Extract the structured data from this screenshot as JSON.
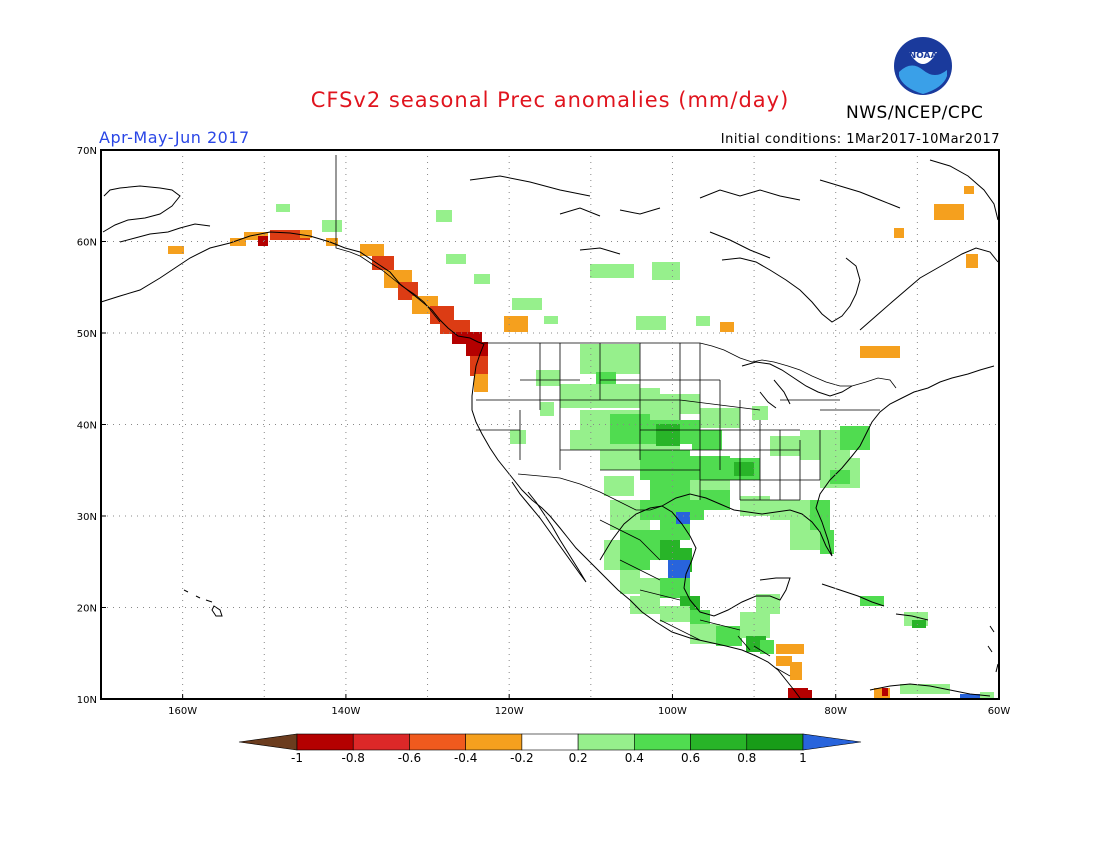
{
  "header": {
    "title": "CFSv2 seasonal Prec anomalies (mm/day)",
    "org": "NWS/NCEP/CPC",
    "season": "Apr-May-Jun 2017",
    "initial_conditions": "Initial conditions: 1Mar2017-10Mar2017",
    "logo_text": "NOAA"
  },
  "map": {
    "lat_labels": [
      "70N",
      "60N",
      "50N",
      "40N",
      "30N",
      "20N",
      "10N"
    ],
    "lon_labels": [
      "160W",
      "140W",
      "120W",
      "100W",
      "80W",
      "60W"
    ],
    "lat_range": [
      10,
      70
    ],
    "lon_range": [
      -170,
      -60
    ]
  },
  "colorbar": {
    "tick_labels": [
      "-1",
      "-0.8",
      "-0.6",
      "-0.4",
      "-0.2",
      "0.2",
      "0.4",
      "0.6",
      "0.8",
      "1"
    ],
    "colors": [
      "#6b3c1e",
      "#b40000",
      "#dc2828",
      "#f05a1e",
      "#f5a01e",
      "#ffffff",
      "#96f08c",
      "#50dc50",
      "#28b428",
      "#189c18",
      "#2864dc"
    ]
  },
  "anomaly_colors": {
    "dry_strong": "#b40000",
    "dry_mod": "#dc3c14",
    "dry_weak": "#f5a01e",
    "wet_weak": "#96f08c",
    "wet_mod": "#50dc50",
    "wet_strong": "#28b428",
    "wet_max": "#2864dc"
  }
}
